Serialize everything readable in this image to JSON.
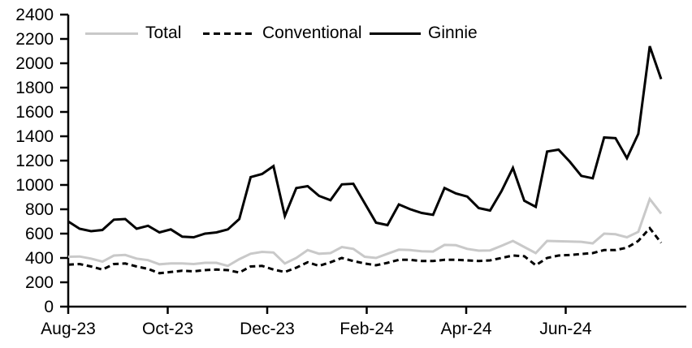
{
  "chart_data": {
    "type": "line",
    "title": "",
    "xlabel": "",
    "ylabel": "",
    "x_frequency": "weekly",
    "x_tick_labels": [
      "Aug-23",
      "Oct-23",
      "Dec-23",
      "Feb-24",
      "Apr-24",
      "Jun-24"
    ],
    "y_ticks": [
      0,
      200,
      400,
      600,
      800,
      1000,
      1200,
      1400,
      1600,
      1800,
      2000,
      2200,
      2400
    ],
    "ylim": [
      0,
      2400
    ],
    "grid": false,
    "legend_position": "top",
    "series": [
      {
        "name": "Total",
        "color": "#c9c9c9",
        "dash": null,
        "values": [
          410,
          412,
          395,
          370,
          420,
          425,
          395,
          382,
          348,
          355,
          355,
          350,
          360,
          360,
          335,
          390,
          435,
          450,
          445,
          355,
          400,
          465,
          435,
          440,
          490,
          475,
          410,
          400,
          435,
          468,
          465,
          455,
          453,
          507,
          505,
          475,
          460,
          462,
          500,
          540,
          490,
          440,
          540,
          537,
          535,
          533,
          520,
          600,
          595,
          570,
          615,
          885,
          765
        ]
      },
      {
        "name": "Conventional",
        "color": "#000000",
        "dash": "7 4.5",
        "values": [
          345,
          350,
          330,
          305,
          350,
          355,
          330,
          310,
          275,
          285,
          295,
          290,
          300,
          305,
          300,
          280,
          330,
          335,
          305,
          285,
          320,
          365,
          335,
          365,
          400,
          375,
          355,
          340,
          360,
          385,
          385,
          375,
          375,
          385,
          385,
          380,
          375,
          380,
          400,
          420,
          415,
          340,
          400,
          420,
          425,
          433,
          440,
          465,
          465,
          485,
          540,
          645,
          525
        ]
      },
      {
        "name": "Ginnie",
        "color": "#000000",
        "dash": null,
        "values": [
          700,
          640,
          620,
          630,
          715,
          720,
          640,
          665,
          610,
          635,
          575,
          570,
          600,
          610,
          635,
          720,
          1065,
          1090,
          1155,
          745,
          975,
          990,
          910,
          875,
          1005,
          1010,
          850,
          690,
          670,
          840,
          800,
          770,
          755,
          975,
          930,
          905,
          810,
          790,
          950,
          1140,
          870,
          820,
          1275,
          1290,
          1190,
          1075,
          1055,
          1390,
          1385,
          1220,
          1420,
          2140,
          1870
        ]
      }
    ],
    "axis_color": "#000000"
  }
}
